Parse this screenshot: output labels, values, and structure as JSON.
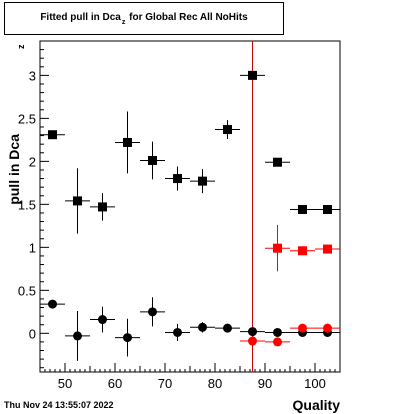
{
  "title": {
    "prefix": "Fitted pull in Dca",
    "subscript": "z",
    "suffix": "for Global Rec All NoHits"
  },
  "footer_text": "Thu Nov 24 13:55:07 2022",
  "chart_data": {
    "type": "scatter",
    "title": "Fitted pull in Dca_z for Global Rec All NoHits",
    "xlabel": "Quality",
    "ylabel": "pull in Dca",
    "ylabel_sub": "z",
    "xlim": [
      45,
      105
    ],
    "ylim": [
      -0.45,
      3.4
    ],
    "x_ticks": [
      50,
      60,
      70,
      80,
      90,
      100
    ],
    "x_tick_labels": [
      "50",
      "60",
      "70",
      "80",
      "90",
      "100"
    ],
    "y_ticks": [
      0,
      0.5,
      1,
      1.5,
      2,
      2.5,
      3
    ],
    "y_tick_labels": [
      "0",
      "0.5",
      "1",
      "1.5",
      "2",
      "2.5",
      "3"
    ],
    "vertical_line": {
      "x": 87.5,
      "color": "#cc0000"
    },
    "grid": false,
    "series": [
      {
        "color": "#000000",
        "marker": "square",
        "points": [
          {
            "x": 47.5,
            "y": 2.31,
            "xerr": 2.5,
            "yerr": 0.0
          },
          {
            "x": 52.5,
            "y": 1.54,
            "xerr": 2.5,
            "yerr": 0.38
          },
          {
            "x": 57.5,
            "y": 1.47,
            "xerr": 2.5,
            "yerr": 0.16
          },
          {
            "x": 62.5,
            "y": 2.22,
            "xerr": 2.5,
            "yerr": 0.36
          },
          {
            "x": 67.5,
            "y": 2.01,
            "xerr": 2.5,
            "yerr": 0.22
          },
          {
            "x": 72.5,
            "y": 1.8,
            "xerr": 2.5,
            "yerr": 0.14
          },
          {
            "x": 77.5,
            "y": 1.77,
            "xerr": 2.5,
            "yerr": 0.14
          },
          {
            "x": 82.5,
            "y": 2.37,
            "xerr": 2.5,
            "yerr": 0.11
          },
          {
            "x": 87.5,
            "y": 3.0,
            "xerr": 2.5,
            "yerr": 0.0
          },
          {
            "x": 92.5,
            "y": 1.99,
            "xerr": 2.5,
            "yerr": 0.0
          },
          {
            "x": 97.5,
            "y": 1.44,
            "xerr": 2.5,
            "yerr": 0.0
          },
          {
            "x": 102.5,
            "y": 1.44,
            "xerr": 2.5,
            "yerr": 0.0
          }
        ]
      },
      {
        "color": "#000000",
        "marker": "circle",
        "points": [
          {
            "x": 47.5,
            "y": 0.34,
            "xerr": 2.5,
            "yerr": 0.0
          },
          {
            "x": 52.5,
            "y": -0.03,
            "xerr": 2.5,
            "yerr": 0.29
          },
          {
            "x": 57.5,
            "y": 0.16,
            "xerr": 2.5,
            "yerr": 0.15
          },
          {
            "x": 62.5,
            "y": -0.05,
            "xerr": 2.5,
            "yerr": 0.22
          },
          {
            "x": 67.5,
            "y": 0.25,
            "xerr": 2.5,
            "yerr": 0.17
          },
          {
            "x": 72.5,
            "y": 0.01,
            "xerr": 2.5,
            "yerr": 0.1
          },
          {
            "x": 77.5,
            "y": 0.07,
            "xerr": 2.5,
            "yerr": 0.06
          },
          {
            "x": 82.5,
            "y": 0.06,
            "xerr": 2.5,
            "yerr": 0.05
          },
          {
            "x": 87.5,
            "y": 0.02,
            "xerr": 2.5,
            "yerr": 0.0
          },
          {
            "x": 92.5,
            "y": 0.01,
            "xerr": 2.5,
            "yerr": 0.0
          },
          {
            "x": 97.5,
            "y": 0.01,
            "xerr": 2.5,
            "yerr": 0.0
          },
          {
            "x": 102.5,
            "y": 0.01,
            "xerr": 2.5,
            "yerr": 0.0
          }
        ]
      },
      {
        "color": "#ff0000",
        "marker": "square",
        "points": [
          {
            "x": 92.5,
            "y": 0.99,
            "xerr": 2.5,
            "yerr": 0.27
          },
          {
            "x": 97.5,
            "y": 0.96,
            "xerr": 2.5,
            "yerr": 0.0
          },
          {
            "x": 102.5,
            "y": 0.98,
            "xerr": 2.5,
            "yerr": 0.0
          }
        ]
      },
      {
        "color": "#ff0000",
        "marker": "circle",
        "points": [
          {
            "x": 87.5,
            "y": -0.09,
            "xerr": 2.5,
            "yerr": 0.0
          },
          {
            "x": 92.5,
            "y": -0.1,
            "xerr": 2.5,
            "yerr": 0.0
          },
          {
            "x": 97.5,
            "y": 0.06,
            "xerr": 2.5,
            "yerr": 0.0
          },
          {
            "x": 102.5,
            "y": 0.06,
            "xerr": 2.5,
            "yerr": 0.0
          }
        ]
      }
    ]
  }
}
